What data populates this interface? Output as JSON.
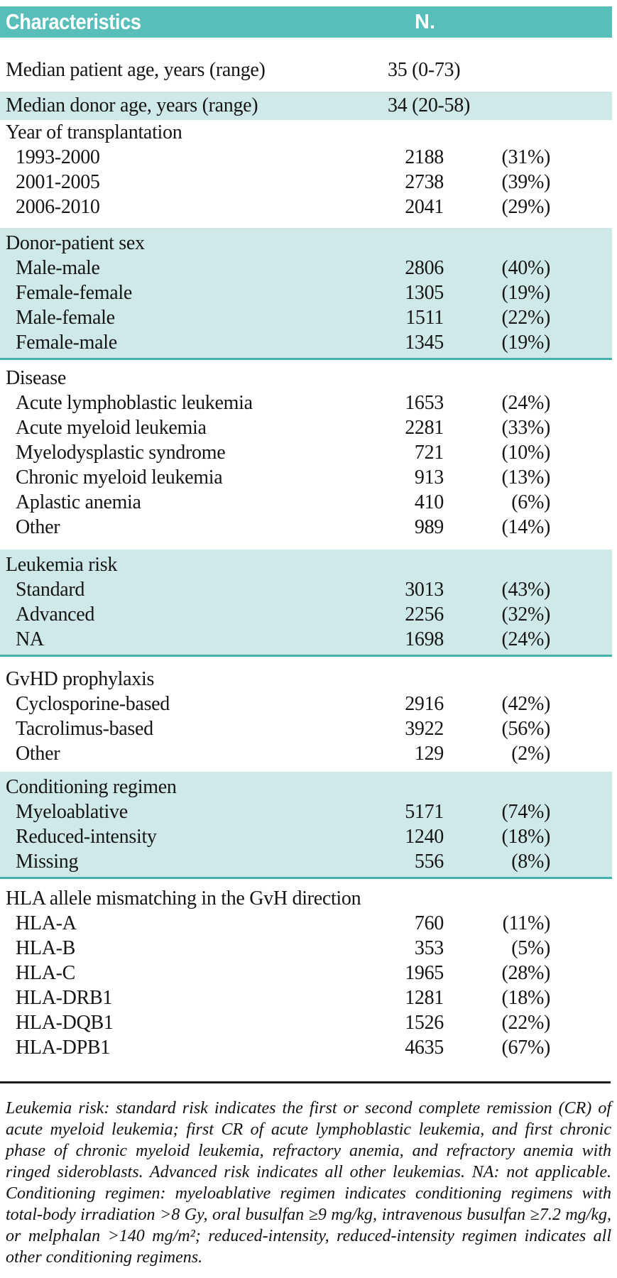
{
  "colors": {
    "header_bg": "#58beba",
    "band_bg": "#cfe9e8",
    "band_border": "#45b0ab",
    "divider": "#1a1a1a",
    "text": "#151515",
    "header_text": "#ffffff"
  },
  "header": {
    "col1": "Characteristics",
    "col2": "N."
  },
  "table": {
    "blocks": [
      {
        "type": "row",
        "shaded": false,
        "label": "Median patient age, years (range)",
        "value": "35 (0-73)"
      },
      {
        "type": "row",
        "shaded": true,
        "label": "Median donor age, years (range)",
        "value": "34 (20-58)"
      },
      {
        "type": "section",
        "shaded": false,
        "title": "Year of transplantation",
        "rows": [
          {
            "label": "1993-2000",
            "n": "2188",
            "pct": "(31%)"
          },
          {
            "label": "2001-2005",
            "n": "2738",
            "pct": "(39%)"
          },
          {
            "label": "2006-2010",
            "n": "2041",
            "pct": "(29%)"
          }
        ]
      },
      {
        "type": "section",
        "shaded": true,
        "title": "Donor-patient sex",
        "rows": [
          {
            "label": "Male-male",
            "n": "2806",
            "pct": "(40%)"
          },
          {
            "label": "Female-female",
            "n": "1305",
            "pct": "(19%)"
          },
          {
            "label": "Male-female",
            "n": "1511",
            "pct": "(22%)"
          },
          {
            "label": "Female-male",
            "n": "1345",
            "pct": "(19%)"
          }
        ]
      },
      {
        "type": "section",
        "shaded": false,
        "title": "Disease",
        "rows": [
          {
            "label": "Acute lymphoblastic leukemia",
            "n": "1653",
            "pct": "(24%)"
          },
          {
            "label": "Acute myeloid leukemia",
            "n": "2281",
            "pct": "(33%)"
          },
          {
            "label": "Myelodysplastic syndrome",
            "n": "721",
            "pct": "(10%)"
          },
          {
            "label": "Chronic myeloid leukemia",
            "n": "913",
            "pct": "(13%)"
          },
          {
            "label": "Aplastic anemia",
            "n": "410",
            "pct": "(6%)"
          },
          {
            "label": "Other",
            "n": "989",
            "pct": "(14%)"
          }
        ]
      },
      {
        "type": "section",
        "shaded": true,
        "title": "Leukemia risk",
        "rows": [
          {
            "label": "Standard",
            "n": "3013",
            "pct": "(43%)"
          },
          {
            "label": "Advanced",
            "n": "2256",
            "pct": "(32%)"
          },
          {
            "label": "NA",
            "n": "1698",
            "pct": "(24%)"
          }
        ]
      },
      {
        "type": "section",
        "shaded": false,
        "title": "GvHD prophylaxis",
        "rows": [
          {
            "label": "Cyclosporine-based",
            "n": "2916",
            "pct": "(42%)"
          },
          {
            "label": "Tacrolimus-based",
            "n": "3922",
            "pct": "(56%)"
          },
          {
            "label": "Other",
            "n": "129",
            "pct": "(2%)"
          }
        ]
      },
      {
        "type": "section",
        "shaded": true,
        "title": "Conditioning regimen",
        "rows": [
          {
            "label": "Myeloablative",
            "n": "5171",
            "pct": "(74%)"
          },
          {
            "label": "Reduced-intensity",
            "n": "1240",
            "pct": "(18%)"
          },
          {
            "label": "Missing",
            "n": "556",
            "pct": "(8%)"
          }
        ]
      },
      {
        "type": "section",
        "shaded": false,
        "title": "HLA allele mismatching in the GvH direction",
        "rows": [
          {
            "label": "HLA-A",
            "n": "760",
            "pct": "(11%)"
          },
          {
            "label": "HLA-B",
            "n": "353",
            "pct": "(5%)"
          },
          {
            "label": "HLA-C",
            "n": "1965",
            "pct": "(28%)"
          },
          {
            "label": "HLA-DRB1",
            "n": "1281",
            "pct": "(18%)"
          },
          {
            "label": "HLA-DQB1",
            "n": "1526",
            "pct": "(22%)"
          },
          {
            "label": "HLA-DPB1",
            "n": "4635",
            "pct": "(67%)"
          }
        ]
      }
    ]
  },
  "footnote": {
    "lines": [
      "Leukemia risk: standard risk indicates the first or second complete remission (CR) of",
      "acute myeloid leukemia; first CR of acute lymphoblastic leukemia, and first chronic",
      "phase of chronic myeloid leukemia, refractory anemia, and refractory anemia with",
      "ringed sideroblasts. Advanced risk indicates all other leukemias. NA: not applicable.",
      "Conditioning regimen: myeloablative regimen indicates conditioning regimens with",
      "total-body irradiation >8 Gy, oral busulfan ≥9 mg/kg, intravenous busulfan ≥7.2 mg/kg,",
      "or melphalan >140 mg/m²; reduced-intensity, reduced-intensity regimen indicates all",
      "other conditioning regimens."
    ]
  }
}
